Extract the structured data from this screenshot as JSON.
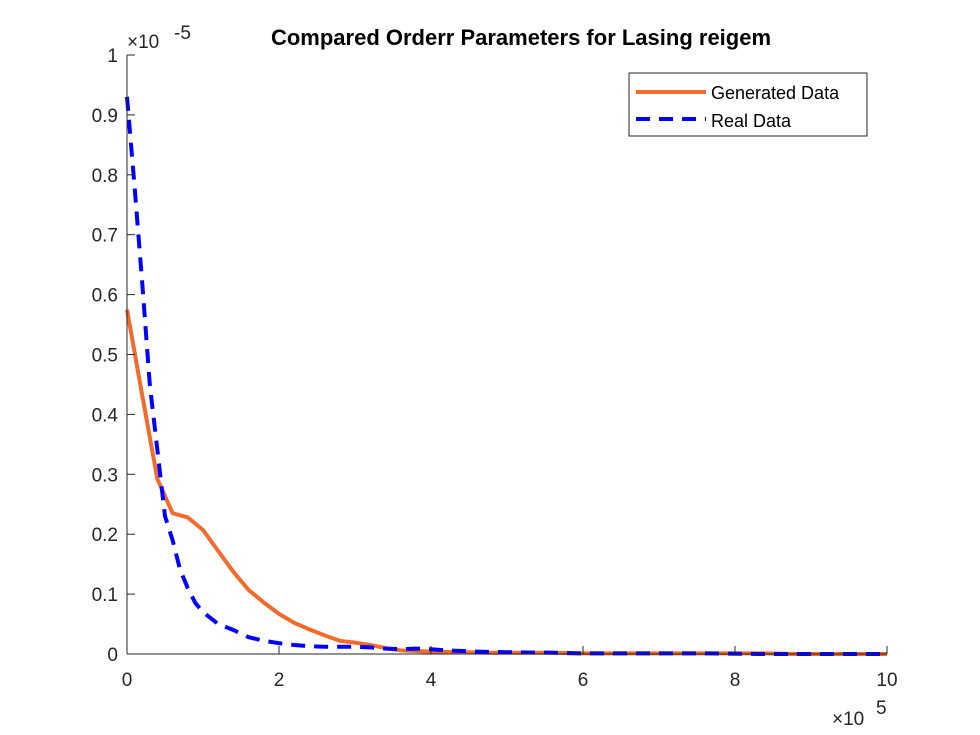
{
  "chart_data": {
    "type": "line",
    "title": "Compared Orderr Parameters for Lasing reigem",
    "xlabel": "",
    "ylabel": "",
    "x_exponent_label": {
      "base": "10",
      "exponent": "5"
    },
    "y_exponent_label": {
      "base": "10",
      "exponent": "-5"
    },
    "xlim": [
      0,
      1000000
    ],
    "ylim": [
      0,
      1e-05
    ],
    "x_ticks": [
      0,
      200000,
      400000,
      600000,
      800000,
      1000000
    ],
    "x_tick_labels": [
      "0",
      "2",
      "4",
      "6",
      "8",
      "10"
    ],
    "y_ticks": [
      0,
      1e-06,
      2e-06,
      3e-06,
      4e-06,
      5e-06,
      6e-06,
      7e-06,
      8e-06,
      9e-06,
      1e-05
    ],
    "y_tick_labels": [
      "0",
      "0.1",
      "0.2",
      "0.3",
      "0.4",
      "0.5",
      "0.6",
      "0.7",
      "0.8",
      "0.9",
      "1"
    ],
    "grid": false,
    "legend_position": "top-right",
    "series": [
      {
        "name": "Generated Data",
        "color": "#f26b2c",
        "dash": "solid",
        "x": [
          0,
          20000,
          40000,
          60000,
          80000,
          100000,
          120000,
          140000,
          160000,
          180000,
          200000,
          220000,
          240000,
          260000,
          280000,
          300000,
          320000,
          340000,
          360000,
          380000,
          400000,
          440000,
          480000,
          520000,
          560000,
          600000,
          640000,
          680000,
          720000,
          760000,
          800000,
          840000,
          880000,
          920000,
          960000,
          1000000
        ],
        "y": [
          5.75e-06,
          4.32e-06,
          2.92e-06,
          2.35e-06,
          2.28e-06,
          2.07e-06,
          1.72e-06,
          1.37e-06,
          1.07e-06,
          8.6e-07,
          6.7e-07,
          5.2e-07,
          4.1e-07,
          3.1e-07,
          2.2e-07,
          1.9e-07,
          1.5e-07,
          1e-07,
          6e-08,
          5e-08,
          4e-08,
          3e-08,
          2e-08,
          2e-08,
          2e-08,
          1e-08,
          1e-08,
          1e-08,
          1e-08,
          1e-08,
          1e-08,
          1e-08,
          0,
          0,
          0,
          0
        ]
      },
      {
        "name": "Real Data",
        "color": "#0000ff",
        "dash": "dashed",
        "x": [
          0,
          10000,
          20000,
          30000,
          40000,
          50000,
          60000,
          70000,
          80000,
          90000,
          100000,
          120000,
          140000,
          160000,
          180000,
          200000,
          220000,
          240000,
          260000,
          280000,
          300000,
          320000,
          340000,
          360000,
          380000,
          400000,
          420000,
          460000,
          500000,
          560000,
          600000,
          680000,
          760000,
          840000,
          920000,
          1000000
        ],
        "y": [
          9.3e-06,
          7.8e-06,
          6.2e-06,
          4.5e-06,
          3.4e-06,
          2.3e-06,
          1.9e-06,
          1.4e-06,
          1.1e-06,
          8.5e-07,
          7e-07,
          5e-07,
          4e-07,
          2.8e-07,
          2.2e-07,
          1.8e-07,
          1.5e-07,
          1.3e-07,
          1.2e-07,
          1.2e-07,
          1.2e-07,
          1.1e-07,
          9e-08,
          8e-08,
          9e-08,
          8e-08,
          6e-08,
          4e-08,
          3e-08,
          2e-08,
          1e-08,
          1e-08,
          1e-08,
          0,
          0,
          0
        ]
      }
    ]
  }
}
